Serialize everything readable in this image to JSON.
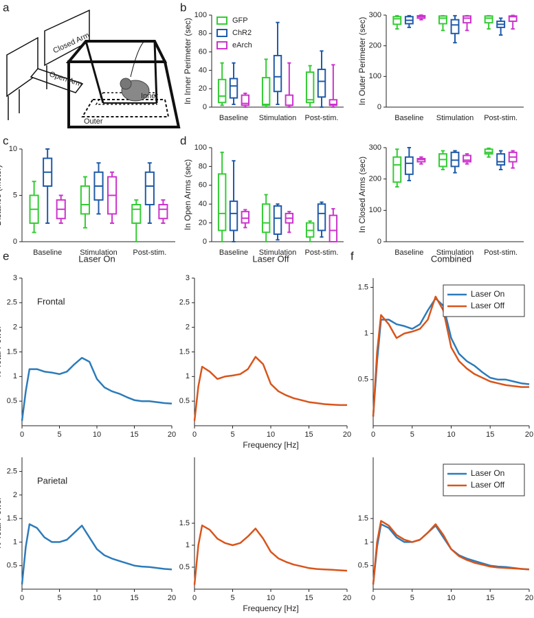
{
  "panel_labels": [
    "a",
    "b",
    "c",
    "d",
    "e",
    "f"
  ],
  "diagram": {
    "labels": [
      "Closed Arm",
      "Open Arm",
      "Inner",
      "Outer"
    ]
  },
  "chart_data": [
    {
      "type": "box",
      "ylabel": "In Inner Perimeter (sec)",
      "categories": [
        "Baseline",
        "Stimulation",
        "Post-stim."
      ],
      "ylim": [
        0,
        100
      ],
      "yticks": [
        0,
        20,
        40,
        60,
        80,
        100
      ],
      "legend": "upper left",
      "series": [
        {
          "name": "GFP",
          "color": "#33cc33",
          "low": [
            2,
            0,
            0
          ],
          "q1": [
            5,
            2,
            5
          ],
          "median": [
            12,
            3,
            8
          ],
          "q3": [
            30,
            32,
            38
          ],
          "high": [
            48,
            52,
            45
          ]
        },
        {
          "name": "ChR2",
          "color": "#1f5aa8",
          "low": [
            3,
            3,
            0
          ],
          "q1": [
            10,
            17,
            11
          ],
          "median": [
            23,
            33,
            28
          ],
          "q3": [
            31,
            56,
            41
          ],
          "high": [
            48,
            92,
            61
          ]
        },
        {
          "name": "eArch",
          "color": "#cc33cc",
          "low": [
            0,
            0,
            0
          ],
          "q1": [
            2,
            2,
            2
          ],
          "median": [
            4,
            2,
            3
          ],
          "q3": [
            13,
            13,
            8
          ],
          "high": [
            15,
            48,
            46
          ]
        }
      ]
    },
    {
      "type": "box",
      "ylabel": "In Outer Perimeter (sec)",
      "categories": [
        "Baseline",
        "Stimulation",
        "Post-stim."
      ],
      "ylim": [
        0,
        300
      ],
      "yticks": [
        0,
        100,
        200,
        300
      ],
      "series": [
        {
          "color": "#33cc33",
          "low": [
            255,
            250,
            255
          ],
          "q1": [
            270,
            272,
            275
          ],
          "median": [
            288,
            290,
            290
          ],
          "q3": [
            295,
            297,
            297
          ],
          "high": [
            298,
            298,
            298
          ]
        },
        {
          "color": "#1f5aa8",
          "low": [
            260,
            210,
            235
          ],
          "q1": [
            272,
            240,
            260
          ],
          "median": [
            283,
            268,
            270
          ],
          "q3": [
            295,
            285,
            280
          ],
          "high": [
            298,
            298,
            290
          ]
        },
        {
          "color": "#cc33cc",
          "low": [
            285,
            250,
            255
          ],
          "q1": [
            290,
            275,
            280
          ],
          "median": [
            295,
            290,
            295
          ],
          "q3": [
            298,
            297,
            297
          ],
          "high": [
            300,
            298,
            299
          ]
        }
      ]
    },
    {
      "type": "box",
      "ylabel": "Distance (meter)",
      "categories": [
        "Baseline",
        "Stimulation",
        "Post-stim."
      ],
      "ylim": [
        0,
        10
      ],
      "yticks": [
        0,
        5,
        10
      ],
      "series": [
        {
          "color": "#33cc33",
          "low": [
            1,
            1.5,
            0
          ],
          "q1": [
            2,
            3,
            2
          ],
          "median": [
            3.5,
            4,
            3.5
          ],
          "q3": [
            5,
            6,
            4
          ],
          "high": [
            6.5,
            7,
            4.5
          ]
        },
        {
          "color": "#1f5aa8",
          "low": [
            2,
            3,
            2
          ],
          "q1": [
            6,
            4.5,
            4
          ],
          "median": [
            7.5,
            6,
            6
          ],
          "q3": [
            9,
            7.5,
            7.5
          ],
          "high": [
            10,
            8.5,
            8.5
          ]
        },
        {
          "color": "#cc33cc",
          "low": [
            2,
            2,
            2
          ],
          "q1": [
            2.5,
            3,
            2.5
          ],
          "median": [
            3.5,
            5,
            3.5
          ],
          "q3": [
            4.5,
            7,
            4
          ],
          "high": [
            5,
            7.5,
            4.5
          ]
        }
      ]
    },
    {
      "type": "box",
      "ylabel": "In Open Arms (sec)",
      "categories": [
        "Baseline",
        "Stimulation",
        "Post-stim."
      ],
      "ylim": [
        0,
        100
      ],
      "yticks": [
        0,
        20,
        40,
        60,
        80,
        100
      ],
      "series": [
        {
          "color": "#33cc33",
          "low": [
            0,
            0,
            0
          ],
          "q1": [
            12,
            10,
            5
          ],
          "median": [
            30,
            20,
            12
          ],
          "q3": [
            72,
            40,
            20
          ],
          "high": [
            95,
            50,
            22
          ]
        },
        {
          "color": "#1f5aa8",
          "low": [
            0,
            2,
            5
          ],
          "q1": [
            12,
            8,
            12
          ],
          "median": [
            30,
            25,
            30
          ],
          "q3": [
            43,
            38,
            40
          ],
          "high": [
            86,
            40,
            42
          ]
        },
        {
          "color": "#cc33cc",
          "low": [
            15,
            10,
            0
          ],
          "q1": [
            20,
            20,
            0
          ],
          "median": [
            25,
            25,
            12
          ],
          "q3": [
            32,
            30,
            28
          ],
          "high": [
            34,
            32,
            35
          ]
        }
      ]
    },
    {
      "type": "box",
      "ylabel": "In Closed Arms (sec)",
      "categories": [
        "Baseline",
        "Stimulation",
        "Post-stim."
      ],
      "ylim": [
        0,
        300
      ],
      "yticks": [
        0,
        100,
        200,
        300
      ],
      "series": [
        {
          "color": "#33cc33",
          "low": [
            175,
            230,
            270
          ],
          "q1": [
            190,
            240,
            280
          ],
          "median": [
            245,
            262,
            285
          ],
          "q3": [
            270,
            280,
            295
          ],
          "high": [
            295,
            290,
            298
          ]
        },
        {
          "color": "#1f5aa8",
          "low": [
            195,
            220,
            230
          ],
          "q1": [
            215,
            240,
            245
          ],
          "median": [
            250,
            260,
            255
          ],
          "q3": [
            270,
            285,
            280
          ],
          "high": [
            300,
            290,
            290
          ]
        },
        {
          "color": "#cc33cc",
          "low": [
            248,
            248,
            235
          ],
          "q1": [
            255,
            255,
            255
          ],
          "median": [
            262,
            260,
            270
          ],
          "q3": [
            265,
            275,
            285
          ],
          "high": [
            270,
            280,
            290
          ]
        }
      ]
    },
    {
      "type": "line",
      "title": "Laser On",
      "annotation": "Frontal",
      "ylabel": "% Total Power",
      "x": [
        0,
        0.5,
        1,
        2,
        3,
        4,
        5,
        6,
        7,
        8,
        9,
        10,
        11,
        12,
        13,
        14,
        15,
        16,
        17,
        18,
        19,
        20
      ],
      "xlim": [
        0,
        20
      ],
      "xticks": [
        0,
        5,
        10,
        15,
        20
      ],
      "ylim": [
        0,
        3
      ],
      "yticks": [
        0.5,
        1,
        1.5,
        2,
        2.5,
        3
      ],
      "series": [
        {
          "color": "#2b7bba",
          "values": [
            0.1,
            0.7,
            1.15,
            1.15,
            1.1,
            1.08,
            1.05,
            1.1,
            1.25,
            1.38,
            1.3,
            0.95,
            0.78,
            0.7,
            0.65,
            0.58,
            0.52,
            0.5,
            0.5,
            0.48,
            0.46,
            0.45
          ]
        }
      ]
    },
    {
      "type": "line",
      "title": "Laser Off",
      "xlabel": "Frequency [Hz]",
      "x": [
        0,
        0.5,
        1,
        2,
        3,
        4,
        5,
        6,
        7,
        8,
        9,
        10,
        11,
        12,
        13,
        14,
        15,
        16,
        17,
        18,
        19,
        20
      ],
      "xlim": [
        0,
        20
      ],
      "xticks": [
        0,
        5,
        10,
        15,
        20
      ],
      "ylim": [
        0,
        3
      ],
      "yticks": [
        0.5,
        1,
        1.5,
        2,
        2.5,
        3
      ],
      "series": [
        {
          "color": "#d9541a",
          "values": [
            0.1,
            0.8,
            1.2,
            1.1,
            0.95,
            1.0,
            1.02,
            1.05,
            1.15,
            1.4,
            1.25,
            0.85,
            0.7,
            0.62,
            0.56,
            0.52,
            0.48,
            0.46,
            0.44,
            0.43,
            0.42,
            0.42
          ]
        }
      ]
    },
    {
      "type": "line",
      "title": "Combined",
      "legend": "upper right",
      "x": [
        0,
        0.5,
        1,
        2,
        3,
        4,
        5,
        6,
        7,
        8,
        9,
        10,
        11,
        12,
        13,
        14,
        15,
        16,
        17,
        18,
        19,
        20
      ],
      "xlim": [
        0,
        20
      ],
      "xticks": [
        0,
        5,
        10,
        15,
        20
      ],
      "ylim": [
        0,
        1.6
      ],
      "yticks": [
        0.5,
        1,
        1.5
      ],
      "series": [
        {
          "name": "Laser On",
          "color": "#2b7bba",
          "values": [
            0.1,
            0.7,
            1.15,
            1.15,
            1.1,
            1.08,
            1.05,
            1.1,
            1.25,
            1.38,
            1.3,
            0.95,
            0.78,
            0.7,
            0.65,
            0.58,
            0.52,
            0.5,
            0.5,
            0.48,
            0.46,
            0.45
          ]
        },
        {
          "name": "Laser Off",
          "color": "#d9541a",
          "values": [
            0.1,
            0.8,
            1.2,
            1.1,
            0.95,
            1.0,
            1.02,
            1.05,
            1.15,
            1.4,
            1.25,
            0.85,
            0.7,
            0.62,
            0.56,
            0.52,
            0.48,
            0.46,
            0.44,
            0.43,
            0.42,
            0.42
          ]
        }
      ]
    },
    {
      "type": "line",
      "annotation": "Parietal",
      "ylabel": "% Total Power",
      "x": [
        0,
        0.5,
        1,
        2,
        3,
        4,
        5,
        6,
        7,
        8,
        9,
        10,
        11,
        12,
        13,
        14,
        15,
        16,
        17,
        18,
        19,
        20
      ],
      "xlim": [
        0,
        20
      ],
      "xticks": [
        0,
        5,
        10,
        15,
        20
      ],
      "ylim": [
        0,
        2.8
      ],
      "yticks": [
        0.5,
        1,
        1.5,
        2,
        2.5
      ],
      "series": [
        {
          "color": "#2b7bba",
          "values": [
            0.1,
            0.9,
            1.38,
            1.3,
            1.1,
            1.0,
            1.0,
            1.05,
            1.2,
            1.35,
            1.1,
            0.85,
            0.72,
            0.65,
            0.6,
            0.55,
            0.5,
            0.48,
            0.47,
            0.45,
            0.43,
            0.42
          ]
        }
      ]
    },
    {
      "type": "line",
      "xlabel": "Frequency [Hz]",
      "x": [
        0,
        0.5,
        1,
        2,
        3,
        4,
        5,
        6,
        7,
        8,
        9,
        10,
        11,
        12,
        13,
        14,
        15,
        16,
        17,
        18,
        19,
        20
      ],
      "xlim": [
        0,
        20
      ],
      "xticks": [
        0,
        5,
        10,
        15,
        20
      ],
      "ylim": [
        0,
        3
      ],
      "yticks": [
        0.5,
        1,
        1.5
      ],
      "series": [
        {
          "color": "#d9541a",
          "values": [
            0.1,
            1.0,
            1.45,
            1.35,
            1.15,
            1.05,
            1.0,
            1.05,
            1.2,
            1.38,
            1.15,
            0.85,
            0.7,
            0.62,
            0.56,
            0.52,
            0.48,
            0.46,
            0.45,
            0.44,
            0.43,
            0.42
          ]
        }
      ]
    },
    {
      "type": "line",
      "legend": "upper right",
      "x": [
        0,
        0.5,
        1,
        2,
        3,
        4,
        5,
        6,
        7,
        8,
        9,
        10,
        11,
        12,
        13,
        14,
        15,
        16,
        17,
        18,
        19,
        20
      ],
      "xlim": [
        0,
        20
      ],
      "xticks": [
        0,
        5,
        10,
        15,
        20
      ],
      "ylim": [
        0,
        2.8
      ],
      "yticks": [
        0.5,
        1,
        1.5
      ],
      "series": [
        {
          "name": "Laser On",
          "color": "#2b7bba",
          "values": [
            0.1,
            0.9,
            1.38,
            1.3,
            1.1,
            1.0,
            1.0,
            1.05,
            1.2,
            1.35,
            1.1,
            0.85,
            0.72,
            0.65,
            0.6,
            0.55,
            0.5,
            0.48,
            0.47,
            0.45,
            0.43,
            0.42
          ]
        },
        {
          "name": "Laser Off",
          "color": "#d9541a",
          "values": [
            0.1,
            1.0,
            1.45,
            1.35,
            1.15,
            1.05,
            1.0,
            1.05,
            1.2,
            1.38,
            1.15,
            0.85,
            0.7,
            0.62,
            0.56,
            0.52,
            0.48,
            0.46,
            0.45,
            0.44,
            0.43,
            0.42
          ]
        }
      ]
    }
  ]
}
